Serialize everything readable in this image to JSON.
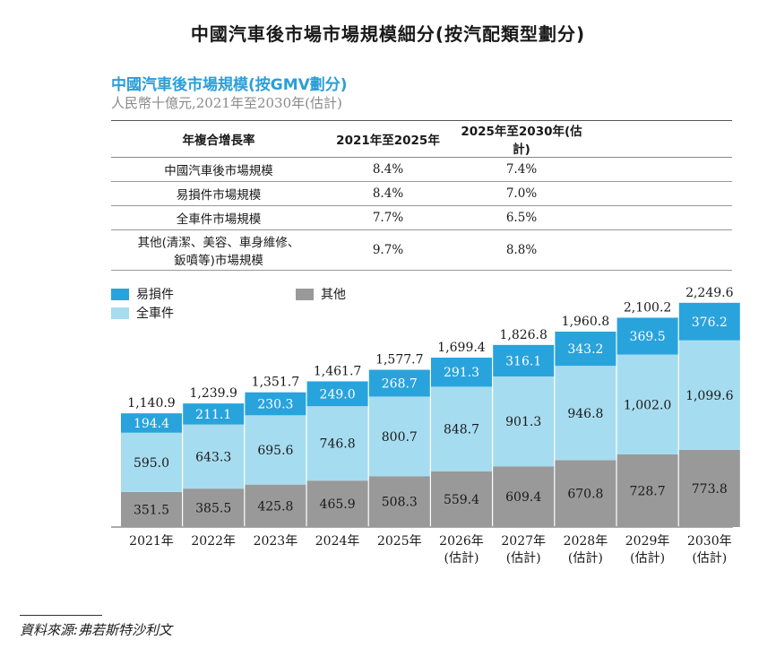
{
  "main_title": "中國汽車後市場市場規模細分(按汽配類型劃分)",
  "chart_title": "中國汽車後市場規模(按GMV劃分)",
  "chart_subtitle": "人民幣十億元,2021年至2030年(估計)",
  "cagr_table": {
    "headers": [
      "年複合增長率",
      "2021年至2025年",
      "2025年至2030年(估計)"
    ],
    "rows": [
      {
        "label": "中國汽車後市場規模",
        "v1": "8.4%",
        "v2": "7.4%"
      },
      {
        "label": "易損件市場規模",
        "v1": "8.4%",
        "v2": "7.0%"
      },
      {
        "label": "全車件市場規模",
        "v1": "7.7%",
        "v2": "6.5%"
      },
      {
        "label_line1": "其他(清潔、美容、車身維修、",
        "label_line2": "鈑噴等)市場規模",
        "v1": "9.7%",
        "v2": "8.8%"
      }
    ]
  },
  "colors": {
    "consumables": "#29a3dc",
    "full_vehicle": "#a6dcf0",
    "others": "#999999",
    "title_blue": "#2a9fd8"
  },
  "chart_data": {
    "type": "bar",
    "stacked": true,
    "categories": [
      [
        "2021年"
      ],
      [
        "2022年"
      ],
      [
        "2023年"
      ],
      [
        "2024年"
      ],
      [
        "2025年"
      ],
      [
        "2026年",
        "(估計)"
      ],
      [
        "2027年",
        "(估計)"
      ],
      [
        "2028年",
        "(估計)"
      ],
      [
        "2029年",
        "(估計)"
      ],
      [
        "2030年",
        "(估計)"
      ]
    ],
    "series": [
      {
        "name": "其他",
        "values": [
          351.5,
          385.5,
          425.8,
          465.9,
          508.3,
          559.4,
          609.4,
          670.8,
          728.7,
          773.8
        ],
        "labels": [
          "351.5",
          "385.5",
          "425.8",
          "465.9",
          "508.3",
          "559.4",
          "609.4",
          "670.8",
          "728.7",
          "773.8"
        ]
      },
      {
        "name": "全車件",
        "values": [
          595.0,
          643.3,
          695.6,
          746.8,
          800.7,
          848.7,
          901.3,
          946.8,
          1002.0,
          1099.6
        ],
        "labels": [
          "595.0",
          "643.3",
          "695.6",
          "746.8",
          "800.7",
          "848.7",
          "901.3",
          "946.8",
          "1,002.0",
          "1,099.6"
        ]
      },
      {
        "name": "易損件",
        "values": [
          194.4,
          211.1,
          230.3,
          249.0,
          268.7,
          291.3,
          316.1,
          343.2,
          369.5,
          376.2
        ],
        "labels": [
          "194.4",
          "211.1",
          "230.3",
          "249.0",
          "268.7",
          "291.3",
          "316.1",
          "343.2",
          "369.5",
          "376.2"
        ]
      }
    ],
    "totals": [
      1140.9,
      1239.9,
      1351.7,
      1461.7,
      1577.7,
      1699.4,
      1826.8,
      1960.8,
      2100.2,
      2249.6
    ],
    "total_labels": [
      "1,140.9",
      "1,239.9",
      "1,351.7",
      "1,461.7",
      "1,577.7",
      "1,699.4",
      "1,826.8",
      "1,960.8",
      "2,100.2",
      "2,249.6"
    ],
    "legend": {
      "consumables": "易損件",
      "full_vehicle": "全車件",
      "others": "其他"
    }
  },
  "source": "資料來源:弗若斯特沙利文"
}
